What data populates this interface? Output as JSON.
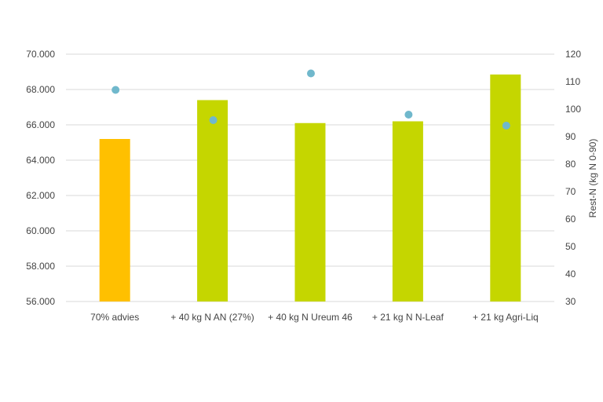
{
  "chart_data": {
    "type": "bar",
    "categories": [
      "70% advies",
      "+ 40 kg N AN (27%)",
      "+ 40 kg N Ureum 46",
      "+ 21 kg N N-Leaf",
      "+ 21 kg Agri-Liq"
    ],
    "series": [
      {
        "axis": "left",
        "type": "bar",
        "values": [
          65200,
          67400,
          66100,
          66200,
          68850
        ],
        "colors": [
          "#FFC000",
          "#C5D600",
          "#C5D600",
          "#C5D600",
          "#C5D600"
        ]
      },
      {
        "name": "Rest-N (kg N 0-90)",
        "axis": "right",
        "type": "scatter",
        "values": [
          107,
          96,
          113,
          98,
          94
        ],
        "color": "#70B8CC"
      }
    ],
    "left_axis": {
      "ylim": [
        56000,
        70000
      ],
      "ticks": [
        56000,
        58000,
        60000,
        62000,
        64000,
        66000,
        68000,
        70000
      ],
      "tick_labels": [
        "56.000",
        "58.000",
        "60.000",
        "62.000",
        "64.000",
        "66.000",
        "68.000",
        "70.000"
      ]
    },
    "right_axis": {
      "ylabel": "Rest-N (kg N 0-90)",
      "ylim": [
        30,
        120
      ],
      "ticks": [
        30,
        40,
        50,
        60,
        70,
        80,
        90,
        100,
        110,
        120
      ],
      "tick_labels": [
        "30",
        "40",
        "50",
        "60",
        "70",
        "80",
        "90",
        "100",
        "110",
        "120"
      ]
    },
    "grid": true
  }
}
